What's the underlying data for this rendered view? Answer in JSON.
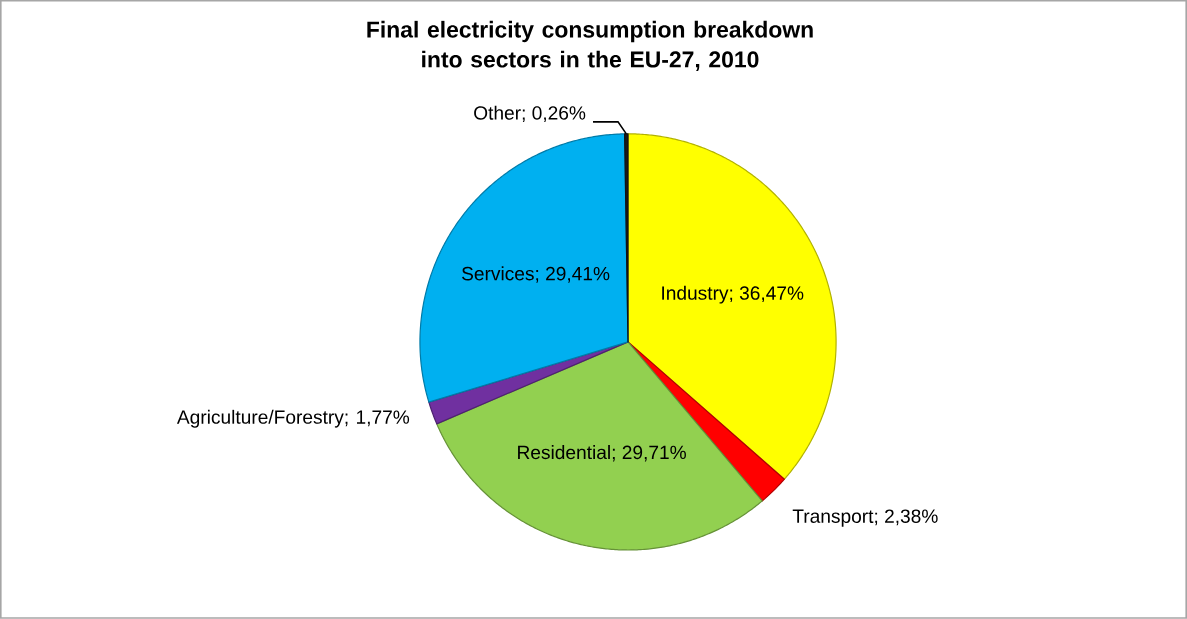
{
  "chart_data": {
    "type": "pie",
    "title": "Final electricity consumption breakdown into sectors in the EU-27, 2010",
    "categories": [
      "Industry; 36,47%",
      "Transport; 2,38%",
      "Residential; 29,71%",
      "Agriculture/Forestry; 1,77%",
      "Services; 29,41%",
      "Other; 0,26%"
    ],
    "values": [
      36.47,
      2.38,
      29.71,
      1.77,
      29.41,
      0.26
    ],
    "colors": [
      "#ffff00",
      "#ff0000",
      "#92d050",
      "#7030a0",
      "#00b0f0",
      "#1a1a1a"
    ]
  }
}
